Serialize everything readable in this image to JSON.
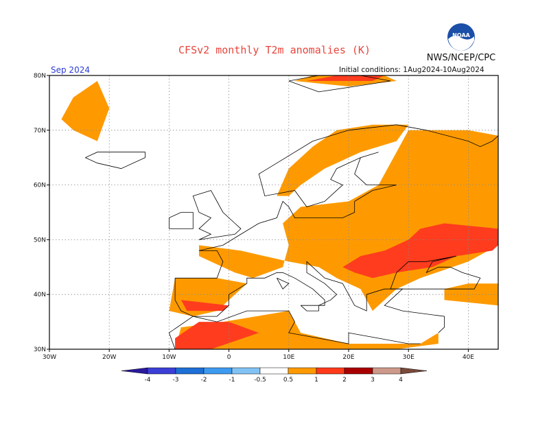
{
  "header": {
    "title": "CFSv2 monthly T2m anomalies (K)",
    "agency": "NWS/NCEP/CPC",
    "logo_text": "NOAA",
    "month": "Sep 2024",
    "initial_conditions": "Initial conditions: 1Aug2024-10Aug2024"
  },
  "map": {
    "lat_labels": [
      "80N",
      "70N",
      "60N",
      "50N",
      "40N",
      "30N"
    ],
    "lon_labels": [
      "30W",
      "20W",
      "10W",
      "0",
      "10E",
      "20E",
      "30E",
      "40E"
    ],
    "lat_range": [
      30,
      80
    ],
    "lon_range": [
      -30,
      45
    ],
    "grid": "dotted"
  },
  "legend": {
    "boundaries": [
      "-4",
      "-3",
      "-2",
      "-1",
      "-0.5",
      "0.5",
      "1",
      "2",
      "3",
      "4"
    ],
    "colors": [
      "#2a1a9e",
      "#3b3fd6",
      "#1e6fd6",
      "#3d9bf0",
      "#82c3f5",
      "#ffffff",
      "#fe9a00",
      "#fe3a1a",
      "#a80000",
      "#cc998a",
      "#7a4a3a"
    ]
  },
  "anomaly_colors": {
    "warm1": "#fe9a00",
    "warm2": "#ff3c1e",
    "warm3": "#b80000",
    "lines": "#000000"
  }
}
